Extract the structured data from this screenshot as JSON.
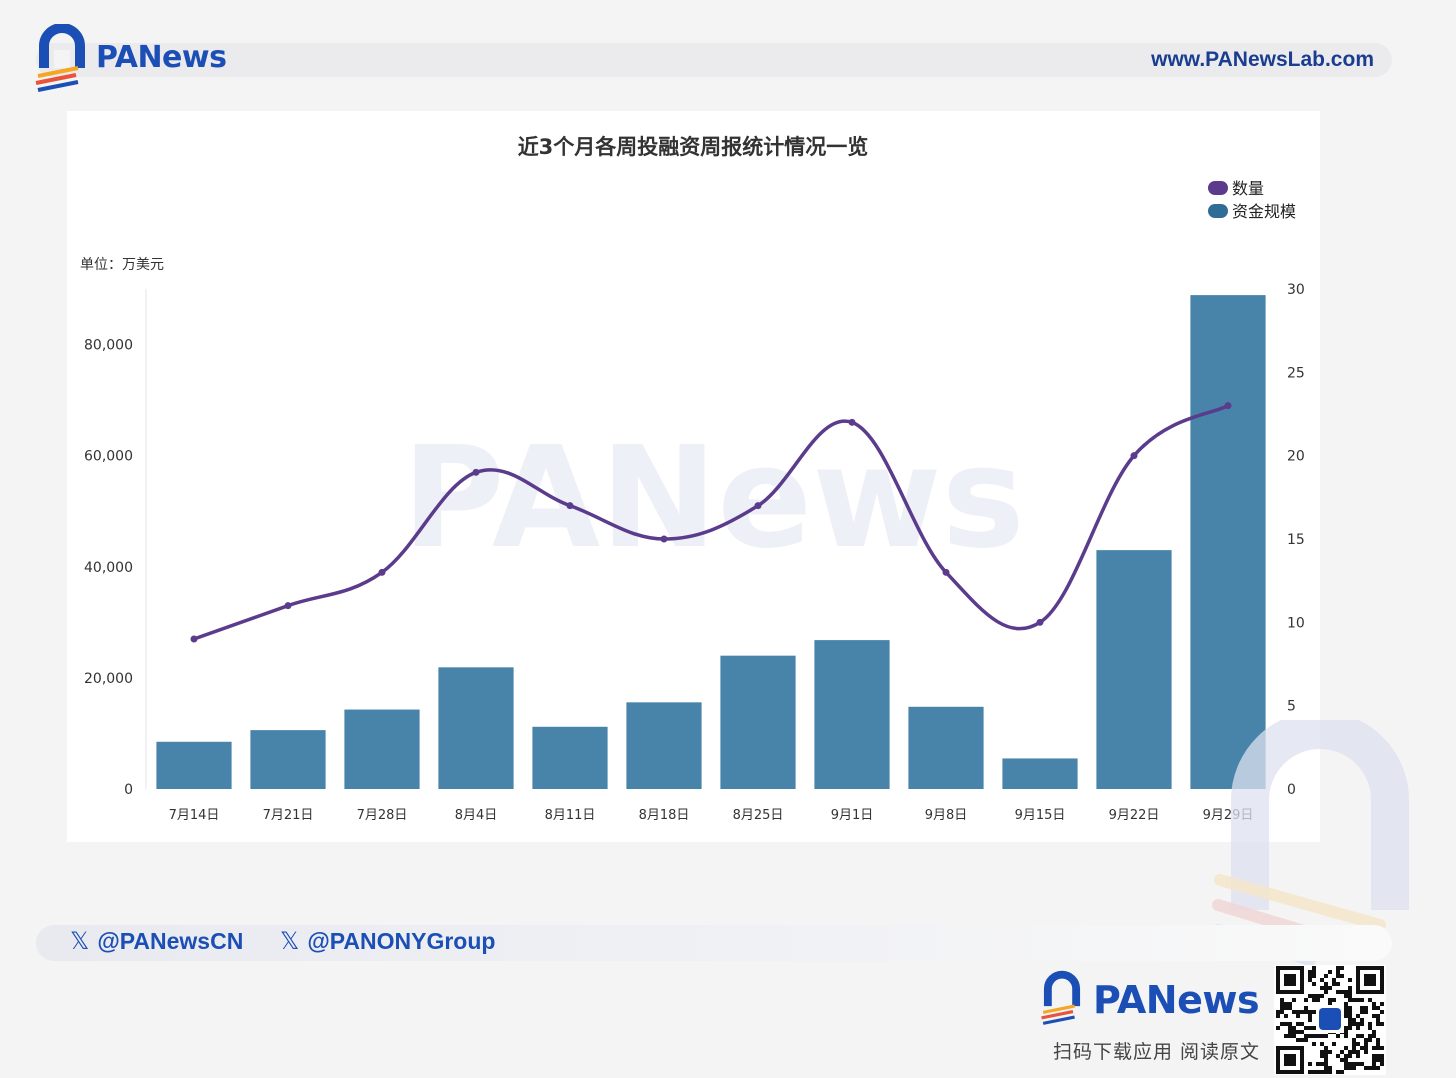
{
  "header": {
    "brand": "PANews",
    "url": "www.PANewsLab.com"
  },
  "chart_data": {
    "type": "bar",
    "title": "近3个月各周投融资周报统计情况一览",
    "unit_label": "单位：万美元",
    "categories": [
      "7月14日",
      "7月21日",
      "7月28日",
      "8月4日",
      "8月11日",
      "8月18日",
      "8月25日",
      "9月1日",
      "9月8日",
      "9月15日",
      "9月22日",
      "9月29日"
    ],
    "series": [
      {
        "name": "资金规模",
        "type": "bar",
        "axis": "left",
        "color": "#4884aa",
        "values": [
          8500,
          10600,
          14300,
          21900,
          11200,
          15600,
          24000,
          26800,
          14800,
          5500,
          43000,
          88900
        ]
      },
      {
        "name": "数量",
        "type": "line",
        "axis": "right",
        "color": "#5b3b8c",
        "values": [
          9,
          11,
          13,
          19,
          17,
          15,
          17,
          22,
          13,
          10,
          20,
          23
        ]
      }
    ],
    "left_axis": {
      "ylim": [
        0,
        90000
      ],
      "ticks": [
        "0",
        "20,000",
        "40,000",
        "60,000",
        "80,000"
      ],
      "tick_values": [
        0,
        20000,
        40000,
        60000,
        80000
      ]
    },
    "right_axis": {
      "ylim": [
        0,
        30
      ],
      "ticks": [
        "0",
        "5",
        "10",
        "15",
        "20",
        "25",
        "30"
      ],
      "tick_values": [
        0,
        5,
        10,
        15,
        20,
        25,
        30
      ]
    },
    "legend": {
      "position": "top-right",
      "items": [
        {
          "label": "数量",
          "color": "#5b3b8c"
        },
        {
          "label": "资金规模",
          "color": "#2f6d96"
        }
      ]
    },
    "grid": false,
    "watermark": "PANews"
  },
  "footer": {
    "social": [
      "@PANewsCN",
      "@PANONYGroup"
    ],
    "brand": "PANews",
    "slogan": "扫码下载应用  阅读原文"
  }
}
